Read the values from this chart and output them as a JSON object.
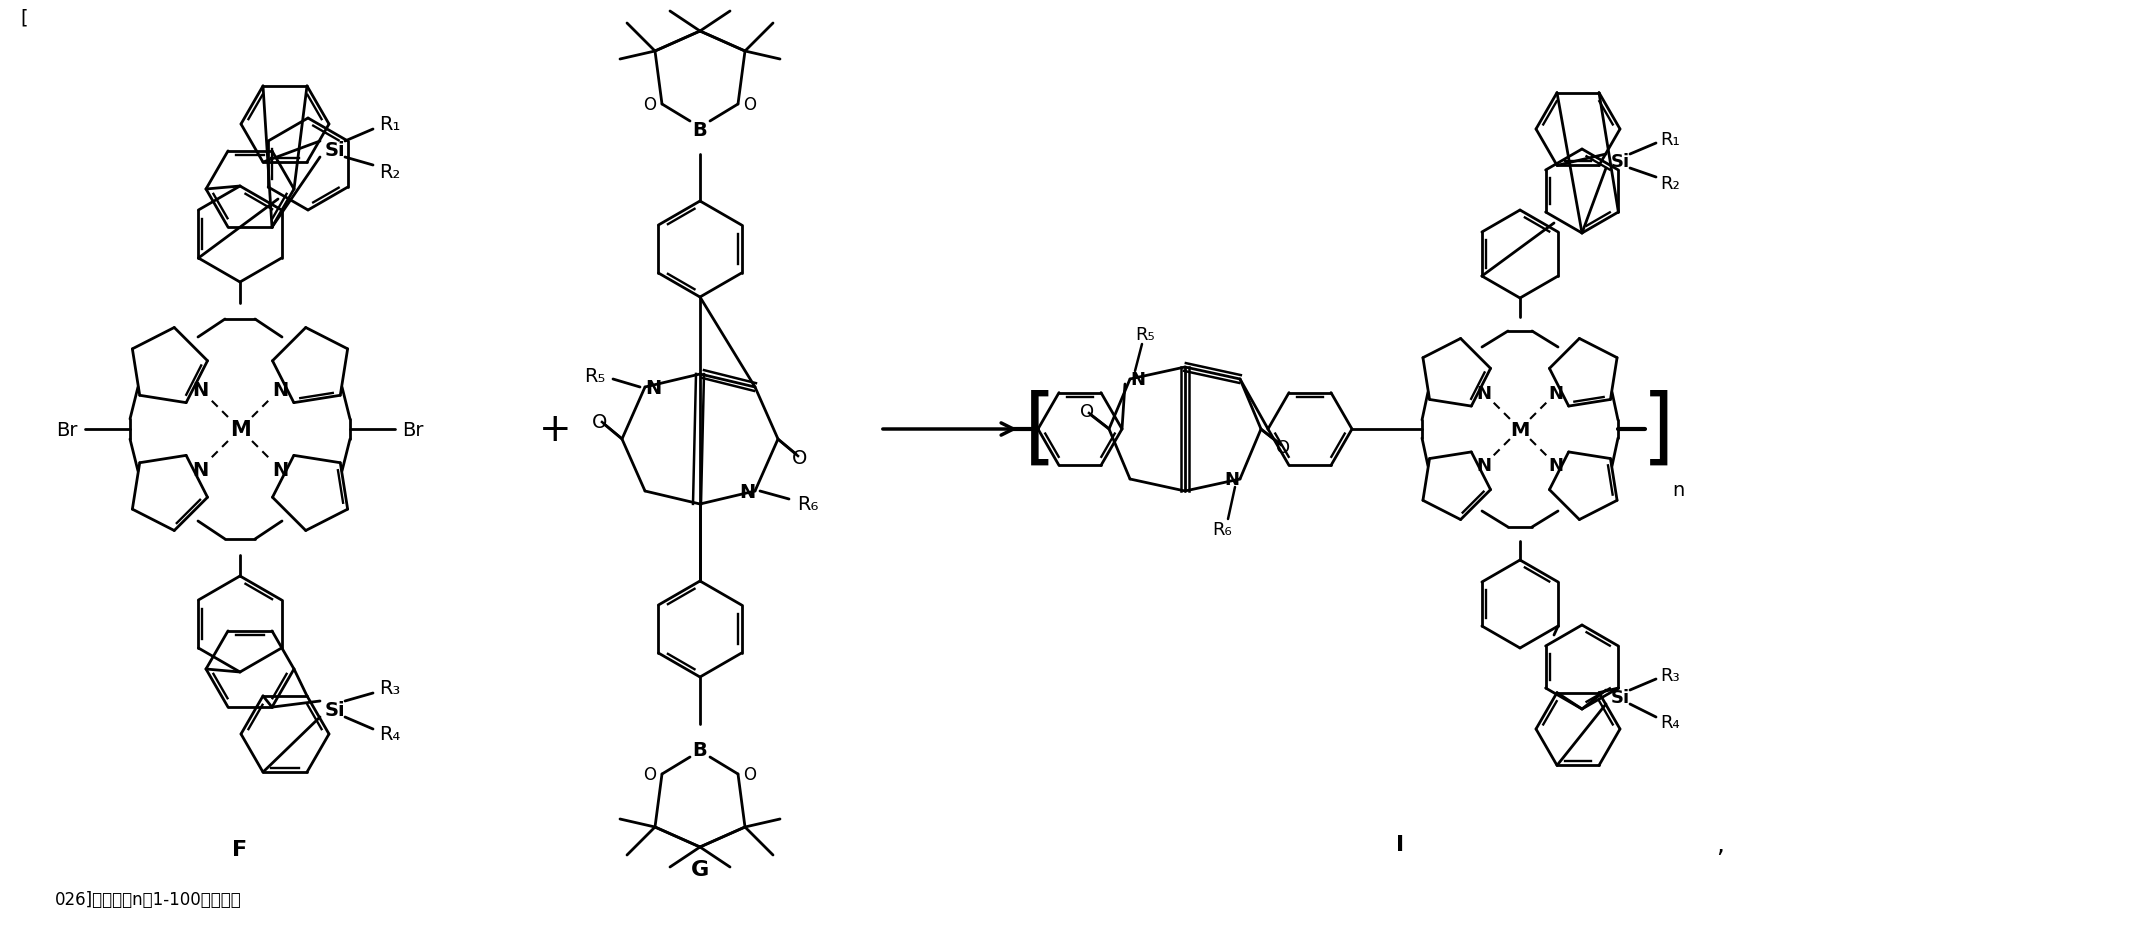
{
  "fig_width": 21.44,
  "fig_height": 9.45,
  "bg_color": "#ffffff",
  "bottom_text": "026]　式中，n为1-100间的整数",
  "label_F": "F",
  "label_G": "G",
  "label_I": "I",
  "comma": ","
}
